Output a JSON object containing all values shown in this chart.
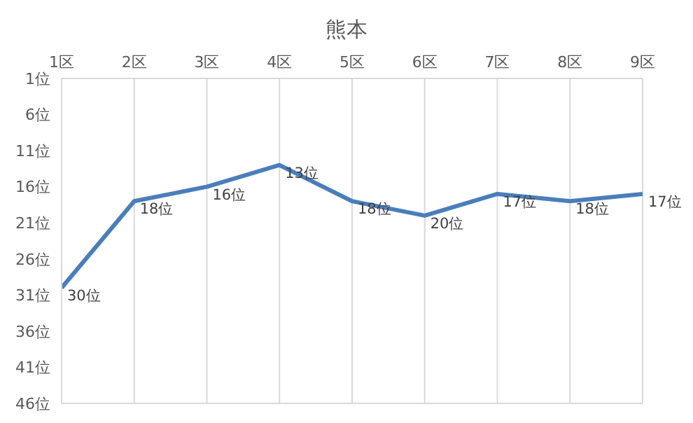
{
  "chart_data": {
    "type": "line",
    "title": "熊本",
    "categories": [
      "1区",
      "2区",
      "3区",
      "4区",
      "5区",
      "6区",
      "7区",
      "8区",
      "9区"
    ],
    "series": [
      {
        "color": "#4a7ebb",
        "values": [
          30,
          18,
          16,
          13,
          18,
          20,
          17,
          18,
          17
        ],
        "value_labels": [
          "30位",
          "18位",
          "16位",
          "13位",
          "18位",
          "20位",
          "17位",
          "18位",
          "17位"
        ]
      }
    ],
    "ylim": [
      46,
      1
    ],
    "yticks": [
      {
        "value": 1,
        "label": "1位"
      },
      {
        "value": 6,
        "label": "6位"
      },
      {
        "value": 11,
        "label": "11位"
      },
      {
        "value": 16,
        "label": "16位"
      },
      {
        "value": 21,
        "label": "21位"
      },
      {
        "value": 26,
        "label": "26位"
      },
      {
        "value": 31,
        "label": "31位"
      },
      {
        "value": 36,
        "label": "36位"
      },
      {
        "value": 41,
        "label": "41位"
      },
      {
        "value": 46,
        "label": "46位"
      }
    ],
    "grid": true
  }
}
